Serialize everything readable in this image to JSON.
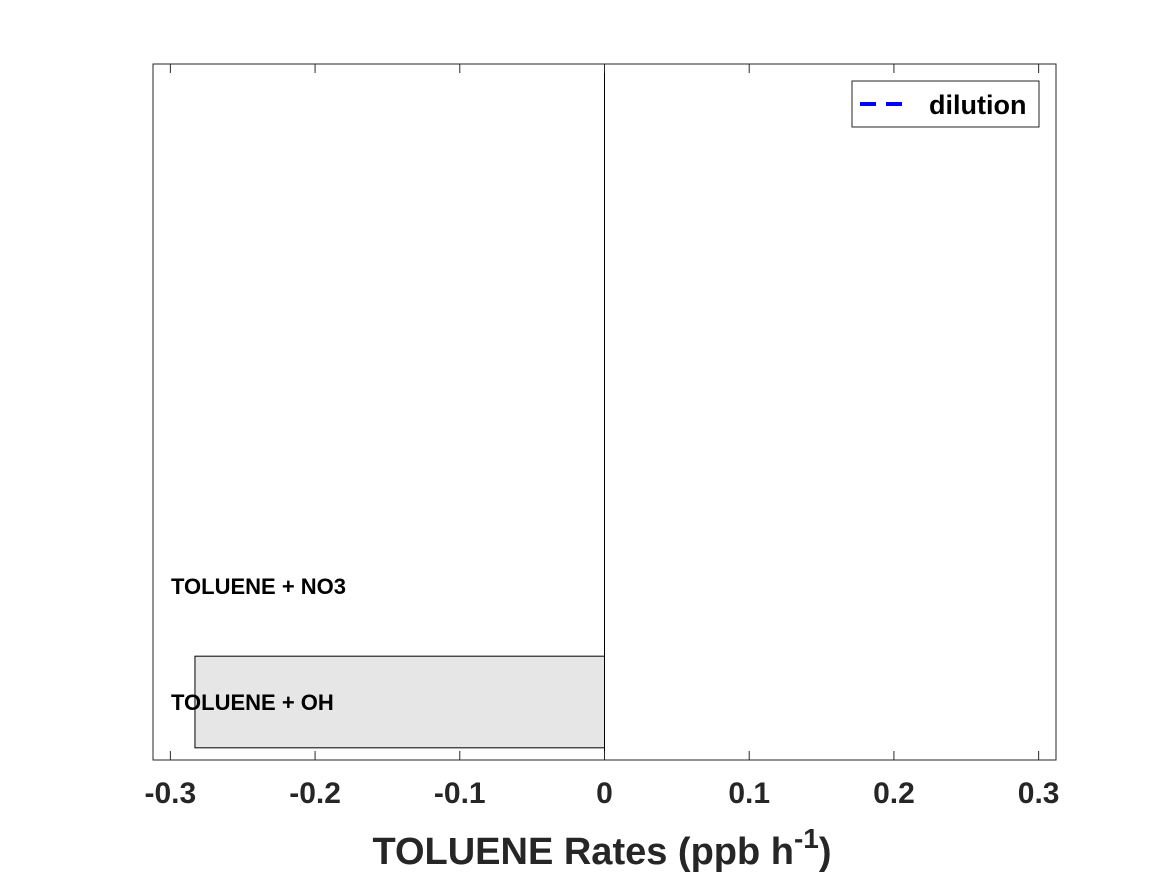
{
  "chart_data": {
    "type": "bar",
    "orientation": "horizontal",
    "categories": [
      "TOLUENE + OH",
      "TOLUENE + NO3"
    ],
    "values": [
      -0.283,
      0
    ],
    "xlabel": {
      "main": "TOLUENE Rates (ppb h",
      "superscript": "-1",
      "close": ")"
    },
    "xlim": [
      -0.312,
      0.312
    ],
    "xticks": [
      -0.3,
      -0.2,
      -0.1,
      0,
      0.1,
      0.2,
      0.3
    ],
    "xtick_labels": [
      "-0.3",
      "-0.2",
      "-0.1",
      "0",
      "0.1",
      "0.2",
      "0.3"
    ],
    "legend": {
      "position": "top-right",
      "entries": [
        {
          "name": "dilution",
          "style": "dashed",
          "color": "#0000ff"
        }
      ]
    },
    "bar_color": "#e6e6e6",
    "grid": false
  }
}
